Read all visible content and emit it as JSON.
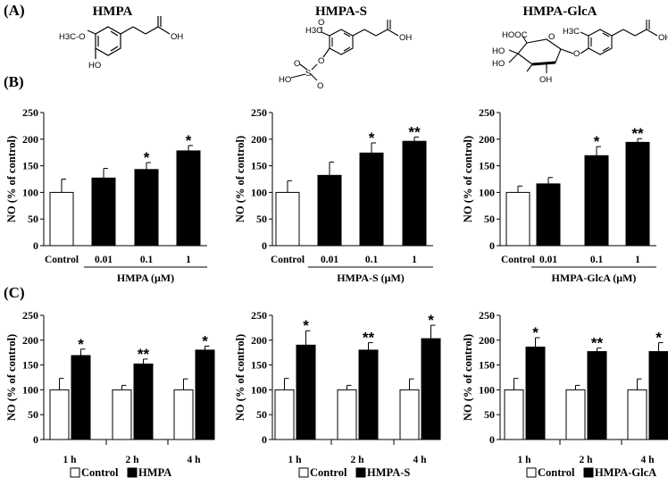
{
  "panel_labels": {
    "a": "(A)",
    "b": "(B)",
    "c": "(C)"
  },
  "compounds": [
    {
      "name": "HMPA",
      "atoms": {
        "h3co": "H3C-O",
        "oh": "OH",
        "ho": "HO"
      }
    },
    {
      "name": "HMPA-S",
      "atoms": {
        "h3co": "H3C",
        "o": "O",
        "oh": "OH",
        "ho": "HO",
        "s": "S",
        "o2": "O",
        "o3": "O",
        "o4": "O"
      }
    },
    {
      "name": "HMPA-GlcA",
      "atoms": {
        "cooh": "HOOC",
        "h3co": "H3C",
        "oh": "OH",
        "ho1": "HO",
        "ho2": "HO",
        "oh2": "OH",
        "o": "O",
        "o2": "O"
      }
    }
  ],
  "y_axis_label": "NO (% of control)",
  "chart_data": [
    {
      "type": "bar",
      "panel": "B",
      "compound": "HMPA",
      "categories": [
        "Control",
        "0.01",
        "0.1",
        "1"
      ],
      "group_label": "HMPA (μM)",
      "values": [
        100,
        127,
        143,
        178
      ],
      "errors": [
        25,
        18,
        13,
        10
      ],
      "significance": [
        "",
        "",
        "*",
        "*"
      ],
      "ylim": [
        0,
        250
      ],
      "yticks": [
        0,
        50,
        100,
        150,
        200,
        250
      ],
      "fills": [
        "white",
        "black",
        "black",
        "black"
      ]
    },
    {
      "type": "bar",
      "panel": "B",
      "compound": "HMPA-S",
      "categories": [
        "Control",
        "0.01",
        "0.1",
        "1"
      ],
      "group_label": "HMPA-S (μM)",
      "values": [
        100,
        132,
        174,
        196
      ],
      "errors": [
        22,
        25,
        19,
        8
      ],
      "significance": [
        "",
        "",
        "*",
        "**"
      ],
      "ylim": [
        0,
        250
      ],
      "yticks": [
        0,
        50,
        100,
        150,
        200,
        250
      ],
      "fills": [
        "white",
        "black",
        "black",
        "black"
      ]
    },
    {
      "type": "bar",
      "panel": "B",
      "compound": "HMPA-GlcA",
      "categories": [
        "Control",
        "0.01",
        "0.1",
        "1"
      ],
      "group_label": "HMPA-GlcA (μM)",
      "values": [
        100,
        116,
        169,
        194
      ],
      "errors": [
        12,
        12,
        17,
        7
      ],
      "significance": [
        "",
        "",
        "*",
        "**"
      ],
      "ylim": [
        0,
        250
      ],
      "yticks": [
        0,
        50,
        100,
        150,
        200,
        250
      ],
      "fills": [
        "white",
        "black",
        "black",
        "black"
      ]
    },
    {
      "type": "bar",
      "panel": "C",
      "compound": "HMPA",
      "categories": [
        "1 h",
        "2 h",
        "4 h"
      ],
      "series": [
        {
          "name": "Control",
          "values": [
            100,
            100,
            100
          ],
          "errors": [
            23,
            9,
            22
          ],
          "fill": "white"
        },
        {
          "name": "HMPA",
          "values": [
            169,
            152,
            180
          ],
          "errors": [
            13,
            10,
            8
          ],
          "fill": "black"
        }
      ],
      "significance": [
        "*",
        "**",
        "*"
      ],
      "ylim": [
        0,
        250
      ],
      "yticks": [
        0,
        50,
        100,
        150,
        200,
        250
      ]
    },
    {
      "type": "bar",
      "panel": "C",
      "compound": "HMPA-S",
      "categories": [
        "1 h",
        "2 h",
        "4 h"
      ],
      "series": [
        {
          "name": "Control",
          "values": [
            100,
            100,
            100
          ],
          "errors": [
            23,
            9,
            22
          ],
          "fill": "white"
        },
        {
          "name": "HMPA-S",
          "values": [
            190,
            180,
            203
          ],
          "errors": [
            29,
            15,
            27
          ],
          "fill": "black"
        }
      ],
      "significance": [
        "*",
        "**",
        "*"
      ],
      "ylim": [
        0,
        250
      ],
      "yticks": [
        0,
        50,
        100,
        150,
        200,
        250
      ]
    },
    {
      "type": "bar",
      "panel": "C",
      "compound": "HMPA-GlcA",
      "categories": [
        "1 h",
        "2 h",
        "4 h"
      ],
      "series": [
        {
          "name": "Control",
          "values": [
            100,
            100,
            100
          ],
          "errors": [
            23,
            9,
            22
          ],
          "fill": "white"
        },
        {
          "name": "HMPA-GlcA",
          "values": [
            186,
            177,
            177
          ],
          "errors": [
            19,
            7,
            18
          ],
          "fill": "black"
        }
      ],
      "significance": [
        "*",
        "**",
        "*"
      ],
      "ylim": [
        0,
        250
      ],
      "yticks": [
        0,
        50,
        100,
        150,
        200,
        250
      ]
    }
  ]
}
